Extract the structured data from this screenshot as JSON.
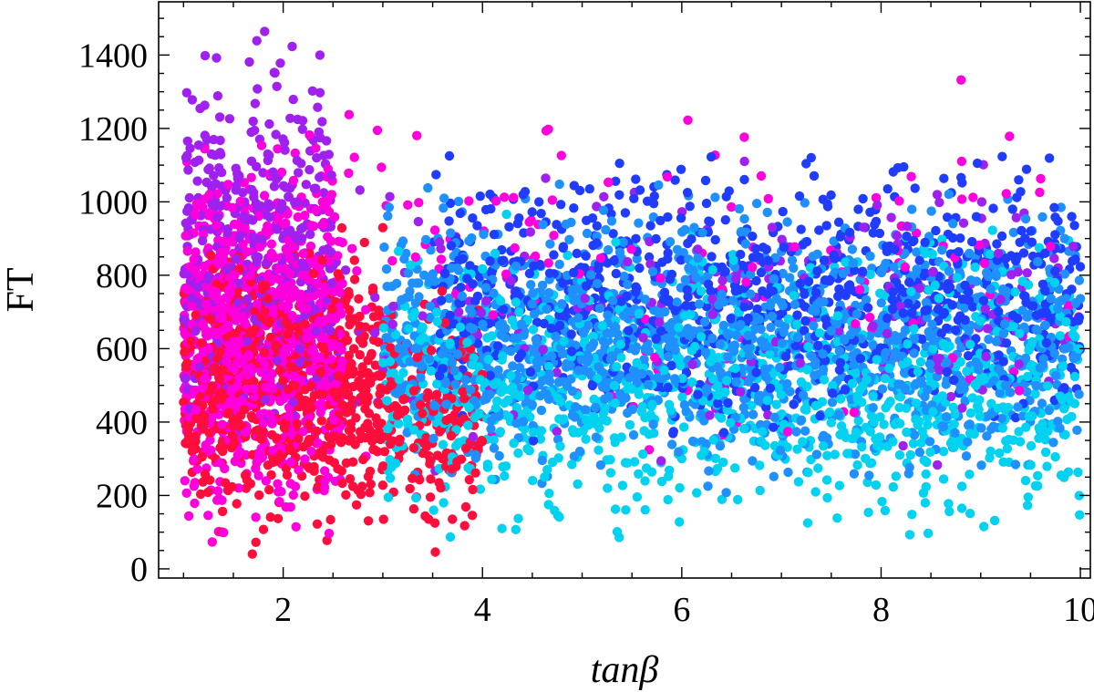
{
  "chart_data": {
    "type": "scatter",
    "xlabel": "tanβ",
    "ylabel": "FT",
    "xlim": [
      0.75,
      10.1
    ],
    "ylim": [
      -25,
      1545
    ],
    "x_ticks": [
      2,
      4,
      6,
      8,
      10
    ],
    "y_ticks": [
      0,
      200,
      400,
      600,
      800,
      1000,
      1200,
      1400
    ],
    "x_tick_labels": [
      "2",
      "4",
      "6",
      "8",
      "10"
    ],
    "y_tick_labels": [
      "0",
      "200",
      "400",
      "600",
      "800",
      "1000",
      "1200",
      "1400"
    ],
    "grid": false,
    "colors": {
      "red": "#ff0d3c",
      "magenta": "#ff00dd",
      "violet": "#a020f0",
      "blue": "#1f3cff",
      "azure": "#1e90ff",
      "cyan": "#00d2f0"
    },
    "clusters": [
      {
        "color": "#ff0d3c",
        "x": [
          1.0,
          3.0
        ],
        "y": [
          0,
          1000
        ],
        "count": 700
      },
      {
        "color": "#ff0d3c",
        "x": [
          3.0,
          4.0
        ],
        "y": [
          0,
          860
        ],
        "count": 180
      },
      {
        "color": "#ff00dd",
        "x": [
          1.0,
          2.6
        ],
        "y": [
          0,
          1250
        ],
        "count": 900
      },
      {
        "color": "#ff00dd",
        "x": [
          2.6,
          10.0
        ],
        "y": [
          200,
          1400
        ],
        "count": 140
      },
      {
        "color": "#a020f0",
        "x": [
          1.0,
          2.5
        ],
        "y": [
          200,
          1540
        ],
        "count": 420
      },
      {
        "color": "#a020f0",
        "x": [
          2.5,
          10.0
        ],
        "y": [
          200,
          1200
        ],
        "count": 220
      },
      {
        "color": "#1f3cff",
        "x": [
          3.5,
          10.0
        ],
        "y": [
          300,
          1200
        ],
        "count": 900
      },
      {
        "color": "#1e90ff",
        "x": [
          3.0,
          10.0
        ],
        "y": [
          150,
          1100
        ],
        "count": 1400
      },
      {
        "color": "#00d2f0",
        "x": [
          3.0,
          10.0
        ],
        "y": [
          0,
          1000
        ],
        "count": 1100
      }
    ]
  }
}
